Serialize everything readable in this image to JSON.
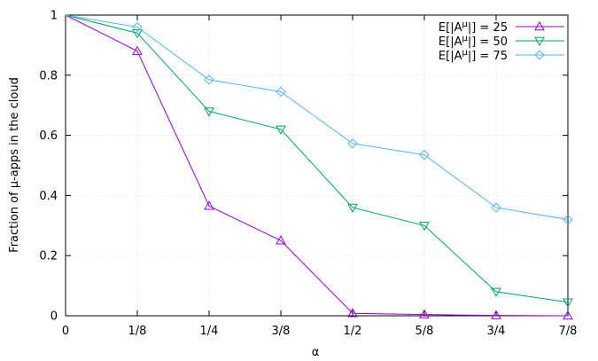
{
  "chart_data": {
    "type": "line",
    "title": "",
    "xlabel": "α",
    "ylabel": "Fraction of μ-apps in the cloud",
    "x": [
      0,
      0.125,
      0.25,
      0.375,
      0.5,
      0.625,
      0.75,
      0.875
    ],
    "xtick_labels": [
      "0",
      "1/8",
      "1/4",
      "3/8",
      "1/2",
      "5/8",
      "3/4",
      "7/8"
    ],
    "yticks": [
      0,
      0.2,
      0.4,
      0.6,
      0.8,
      1
    ],
    "ytick_labels": [
      "0",
      "0.2",
      "0.4",
      "0.6",
      "0.8",
      "1"
    ],
    "xlim": [
      0,
      0.875
    ],
    "ylim": [
      0,
      1
    ],
    "grid": true,
    "legend_position": "top-right",
    "series": [
      {
        "name": "E[|Aᴴ|] = 25",
        "name_base": "E[|A",
        "name_sup": "μ",
        "name_tail": "|] = 25",
        "color": "#9400d3",
        "marker": "triangle-up",
        "y": [
          1.0,
          0.88,
          0.365,
          0.25,
          0.008,
          0.004,
          0.001,
          0.0
        ]
      },
      {
        "name": "E[|Aᴴ|] = 50",
        "name_base": "E[|A",
        "name_sup": "μ",
        "name_tail": "|] = 50",
        "color": "#009e73",
        "marker": "triangle-down",
        "y": [
          1.0,
          0.94,
          0.68,
          0.62,
          0.36,
          0.3,
          0.08,
          0.045
        ]
      },
      {
        "name": "E[|Aᴴ|] = 75",
        "name_base": "E[|A",
        "name_sup": "μ",
        "name_tail": "|] = 75",
        "color": "#56b4e9",
        "marker": "diamond",
        "y": [
          1.0,
          0.96,
          0.785,
          0.745,
          0.573,
          0.535,
          0.36,
          0.32
        ]
      }
    ]
  }
}
